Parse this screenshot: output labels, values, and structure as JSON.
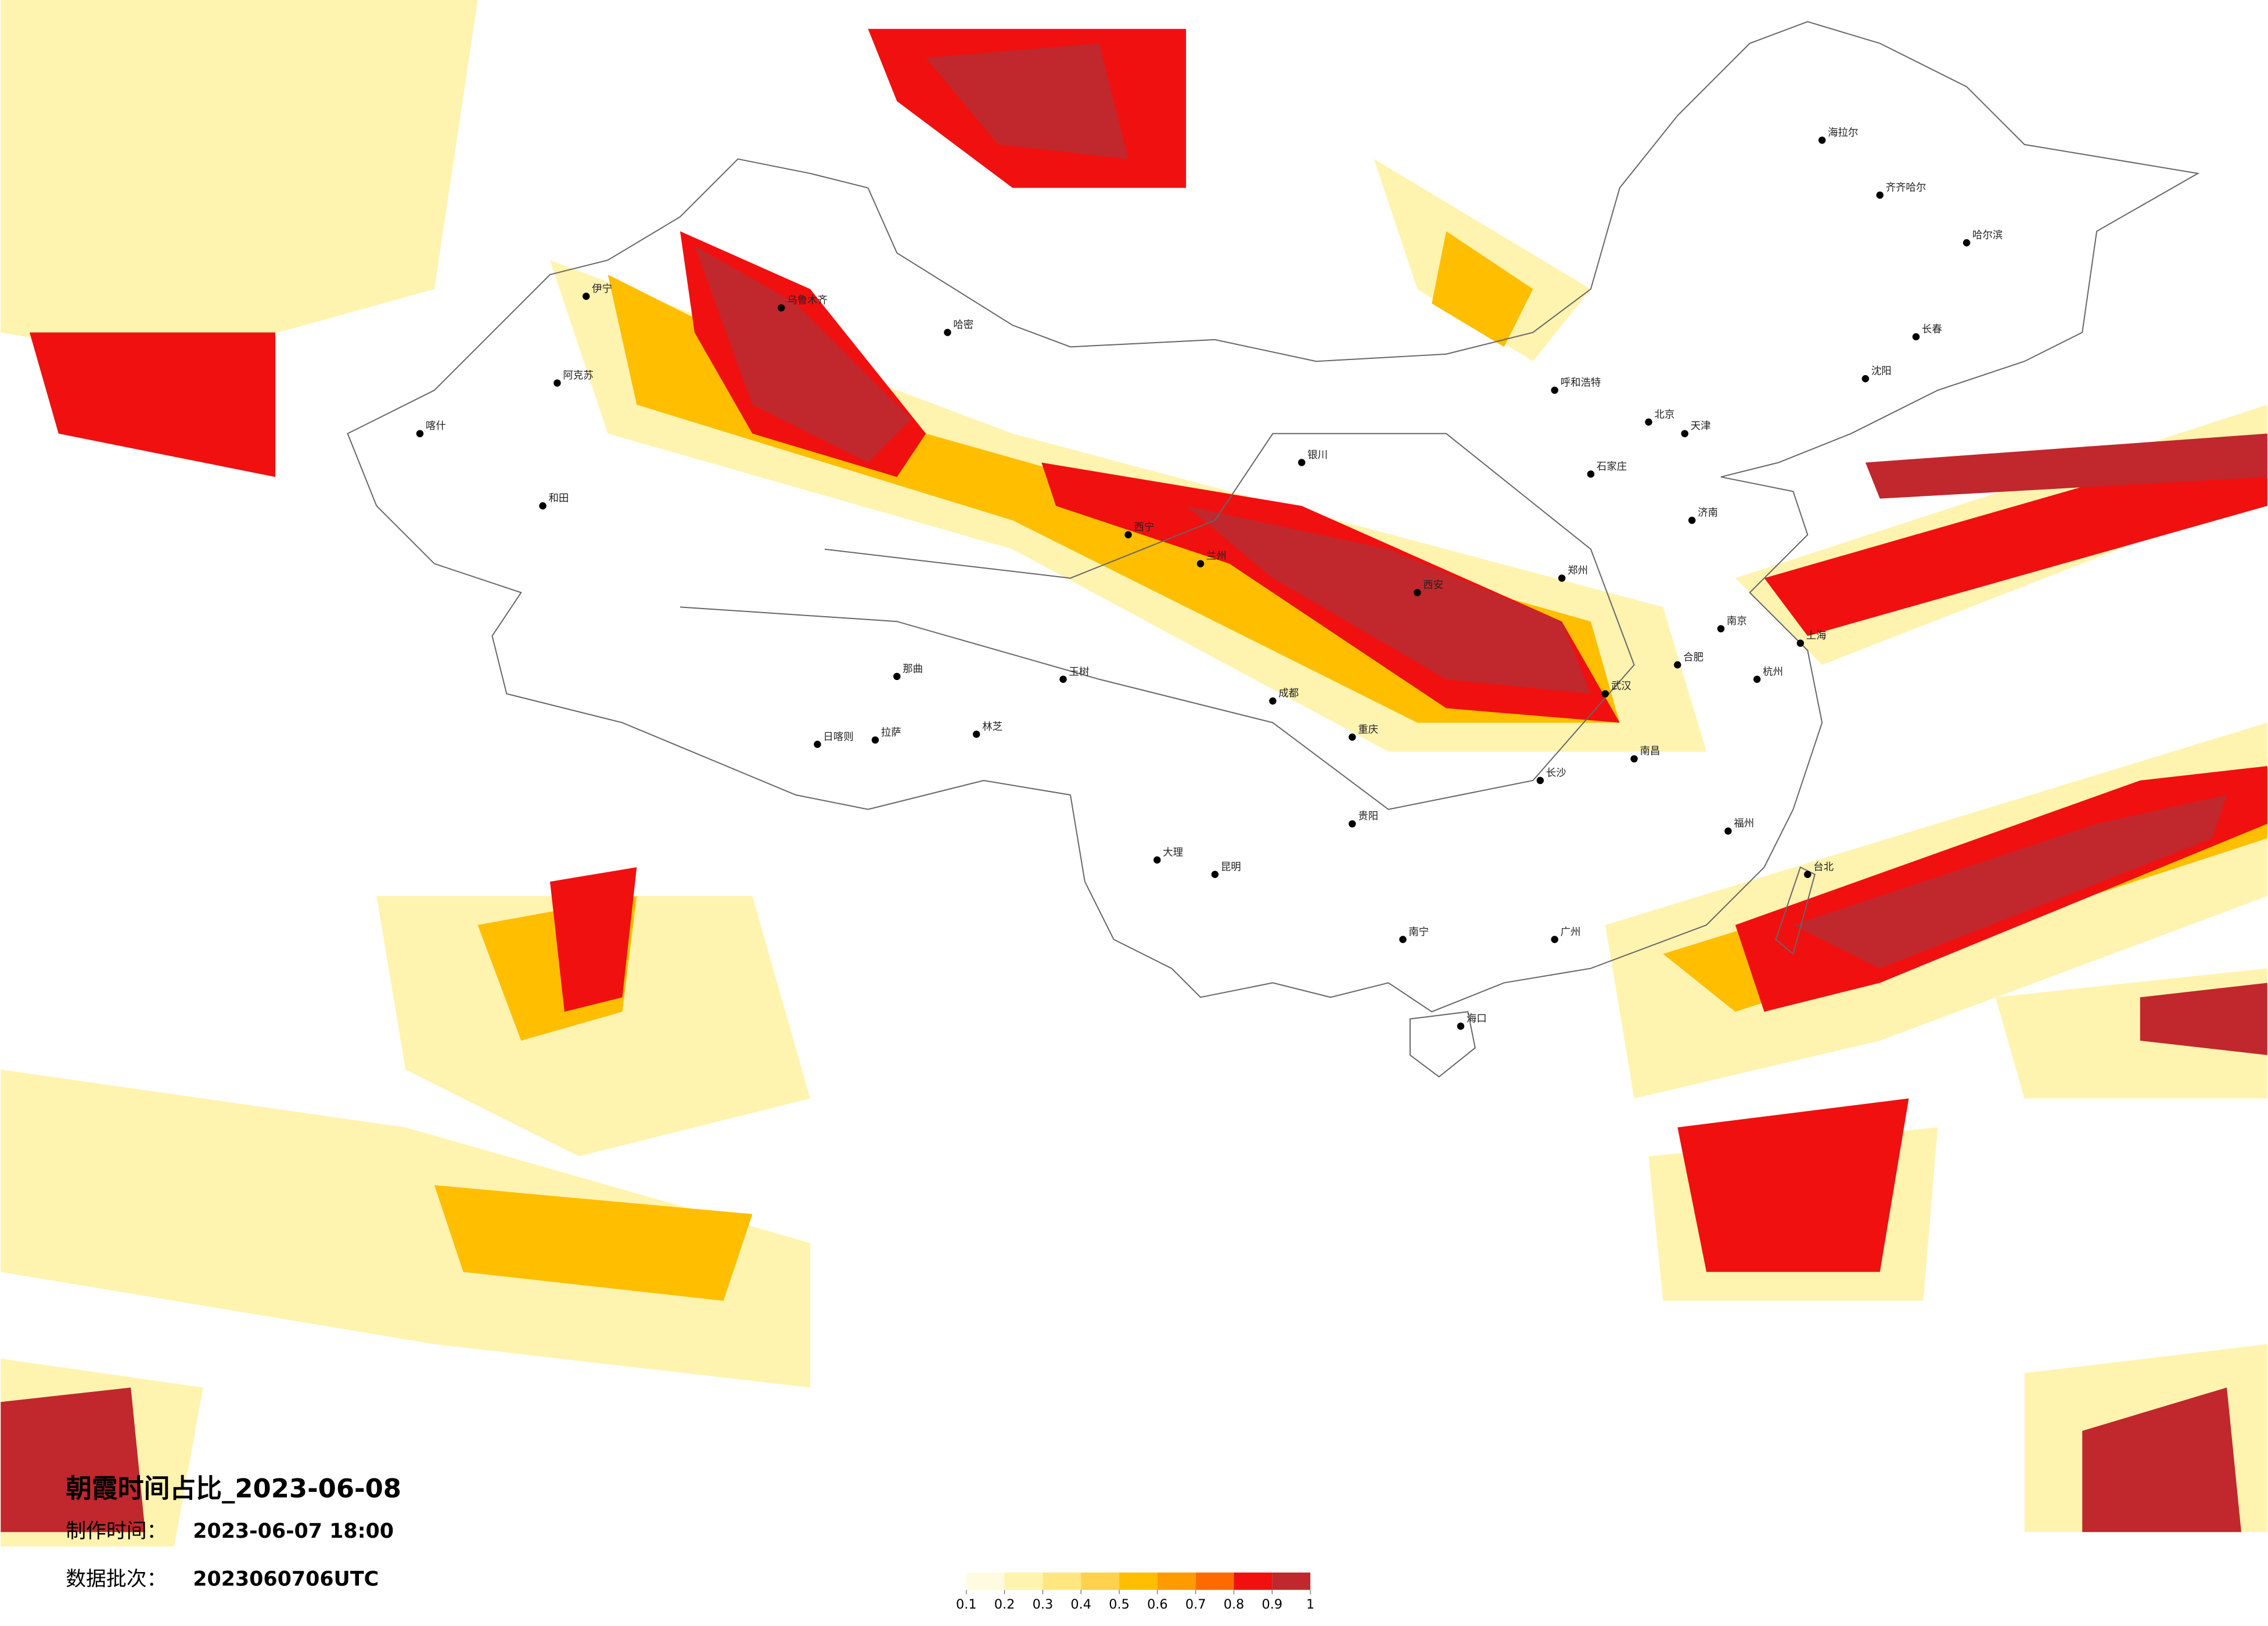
{
  "header": {
    "title": "朝霞时间占比_2023-06-08",
    "made_label": "制作时间：",
    "made_time": "2023-06-07 18:00",
    "batch_label": "数据批次：",
    "batch": "2023060706UTC"
  },
  "legend": {
    "colors": [
      "#fffbe0",
      "#fff3b0",
      "#ffe680",
      "#ffd24d",
      "#ffbe00",
      "#ff9a00",
      "#ff6a00",
      "#f01010",
      "#c0282d"
    ],
    "ticks": [
      0.1,
      0.2,
      0.3,
      0.4,
      0.5,
      0.6,
      0.7,
      0.8,
      0.9,
      1
    ]
  },
  "cities": [
    "哈尔滨",
    "长春",
    "沈阳",
    "北京",
    "天津",
    "石家庄",
    "济南",
    "郑州",
    "西安",
    "兰州",
    "西宁",
    "银川",
    "呼和浩特",
    "乌鲁木齐",
    "拉萨",
    "成都",
    "重庆",
    "贵阳",
    "昆明",
    "南宁",
    "广州",
    "海口",
    "长沙",
    "武汉",
    "南昌",
    "福州",
    "杭州",
    "上海",
    "南京",
    "合肥",
    "台北",
    "喀什",
    "和田",
    "阿克苏",
    "伊宁",
    "哈密",
    "海拉尔",
    "齐齐哈尔",
    "日喀则",
    "那曲",
    "林芝",
    "大理",
    "玉树"
  ]
}
